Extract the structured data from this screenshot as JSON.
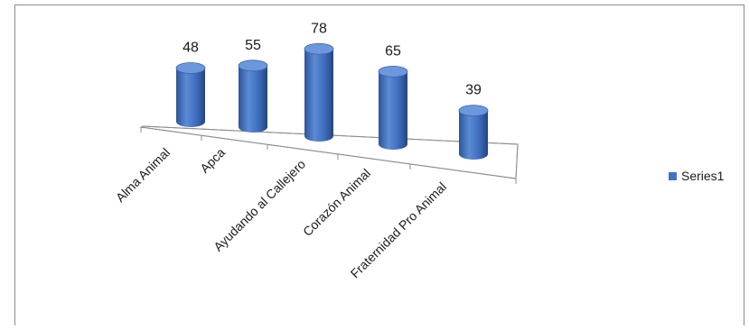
{
  "chart_data": {
    "type": "bar",
    "style": "3d-cylinder",
    "categories": [
      "Alma Animal",
      "Apca",
      "Ayudando al Callejero",
      "Corazón  Animal",
      "Fraternidad Pro Animal"
    ],
    "series": [
      {
        "name": "Series1",
        "values": [
          48,
          55,
          78,
          65,
          39
        ],
        "color": "#4472C4"
      }
    ],
    "data_labels": true,
    "legend_position": "right",
    "gridlines": false,
    "title": "",
    "xlabel": "",
    "ylabel": ""
  }
}
